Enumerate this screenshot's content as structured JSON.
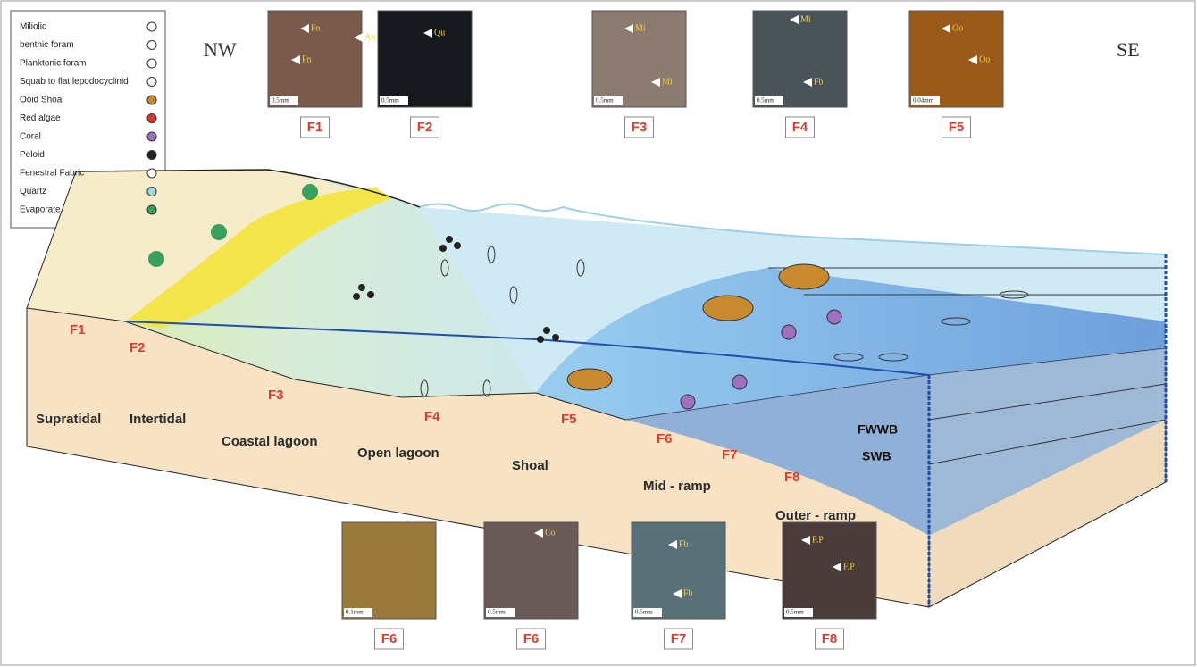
{
  "legend": [
    {
      "label": "Miliolid"
    },
    {
      "label": "benthic foram"
    },
    {
      "label": "Planktonic foram"
    },
    {
      "label": "Squab to flat lepodocyclinid"
    },
    {
      "label": "Ooid Shoal"
    },
    {
      "label": "Red algae"
    },
    {
      "label": "Coral"
    },
    {
      "label": "Peloid"
    },
    {
      "label": "Fenestral Fabric"
    },
    {
      "label": "Quartz"
    },
    {
      "label": "Evaporate"
    }
  ],
  "orientation": {
    "left": "NW",
    "right": "SE"
  },
  "top_photos": [
    {
      "label": "F1",
      "scale": "0.5mm",
      "annotations": [
        "Fn",
        "An",
        "Fn"
      ]
    },
    {
      "label": "F2",
      "scale": "0.5mm",
      "annotations": [
        "Qu"
      ]
    },
    {
      "label": "F3",
      "scale": "0.5mm",
      "annotations": [
        "Mi",
        "Mi"
      ]
    },
    {
      "label": "F4",
      "scale": "0.5mm",
      "annotations": [
        "Mi",
        "Fb"
      ]
    },
    {
      "label": "F5",
      "scale": "0.04mm",
      "annotations": [
        "Oo",
        "Oo"
      ]
    }
  ],
  "bottom_photos": [
    {
      "label": "F6",
      "scale": "0.1mm",
      "annotations": []
    },
    {
      "label": "F6",
      "scale": "0.5mm",
      "annotations": [
        "Co"
      ]
    },
    {
      "label": "F7",
      "scale": "0.5mm",
      "annotations": [
        "Fb",
        "Fb"
      ]
    },
    {
      "label": "F8",
      "scale": "0.5mm",
      "annotations": [
        "F.P",
        "F.P"
      ]
    }
  ],
  "block": {
    "facies": [
      "F1",
      "F2",
      "F3",
      "F4",
      "F5",
      "F6",
      "F7",
      "F8"
    ],
    "environments": [
      "Supratidal",
      "Intertidal",
      "Coastal lagoon",
      "Open lagoon",
      "Shoal",
      "Mid - ramp",
      "Outer - ramp"
    ],
    "wave_bases": [
      "FWWB",
      "SWB"
    ]
  }
}
